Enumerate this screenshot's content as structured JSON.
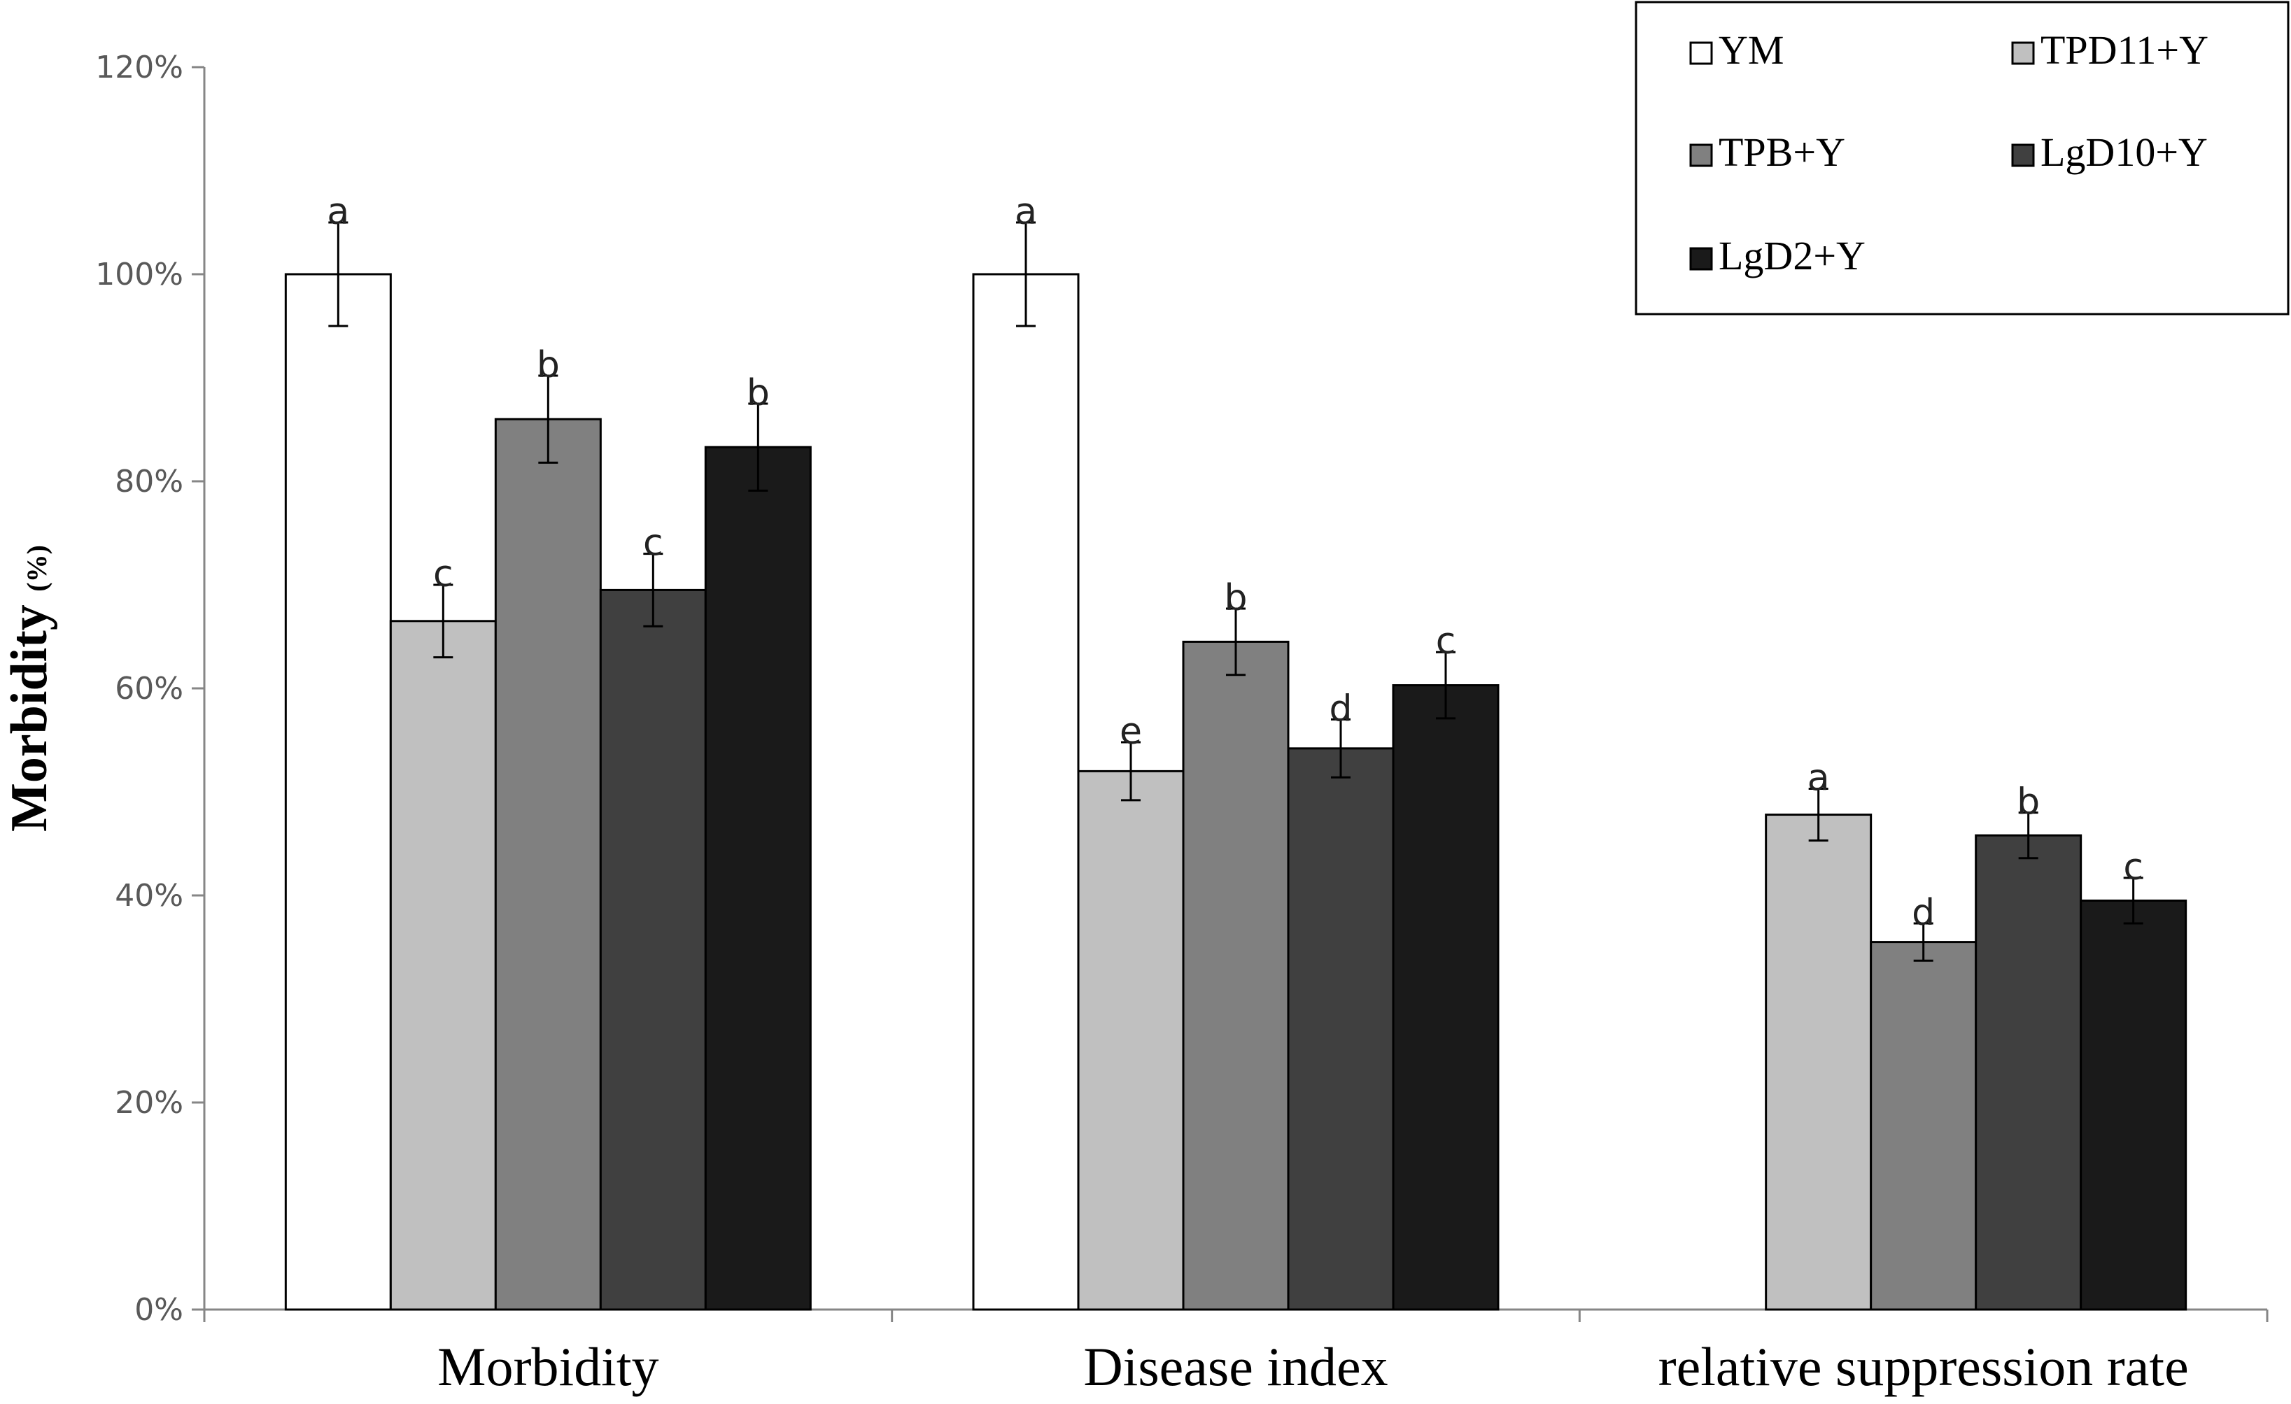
{
  "chart_data": {
    "type": "bar",
    "title": "",
    "xlabel": "",
    "ylabel": "Morbidity",
    "ylabel_unit": "(%)",
    "ylim": [
      0,
      120
    ],
    "yticks": [
      0,
      20,
      40,
      60,
      80,
      100,
      120
    ],
    "ytick_suffix": "%",
    "grid": false,
    "legend_position": "top-right",
    "categories": [
      "Morbidity",
      "Disease index",
      "relative suppression rate"
    ],
    "series": [
      {
        "name": "YM",
        "color": "#ffffff",
        "values": [
          100,
          100,
          null
        ],
        "errors": [
          5,
          5,
          null
        ],
        "labels": [
          "a",
          "a",
          null
        ]
      },
      {
        "name": "TPD11+Y",
        "color": "#c0c0c0",
        "values": [
          66.5,
          52,
          47.8
        ],
        "errors": [
          3.5,
          2.8,
          2.5
        ],
        "labels": [
          "c",
          "e",
          "a"
        ]
      },
      {
        "name": "TPB+Y",
        "color": "#808080",
        "values": [
          86,
          64.5,
          35.5
        ],
        "errors": [
          4.2,
          3.2,
          1.8
        ],
        "labels": [
          "b",
          "b",
          "d"
        ]
      },
      {
        "name": "LgD10+Y",
        "color": "#404040",
        "values": [
          69.5,
          54.2,
          45.8
        ],
        "errors": [
          3.5,
          2.8,
          2.2
        ],
        "labels": [
          "c",
          "d",
          "b"
        ]
      },
      {
        "name": "LgD2+Y",
        "color": "#1a1a1a",
        "values": [
          83.3,
          60.3,
          39.5
        ],
        "errors": [
          4.2,
          3.2,
          2.2
        ],
        "labels": [
          "b",
          "c",
          "c"
        ]
      }
    ]
  }
}
